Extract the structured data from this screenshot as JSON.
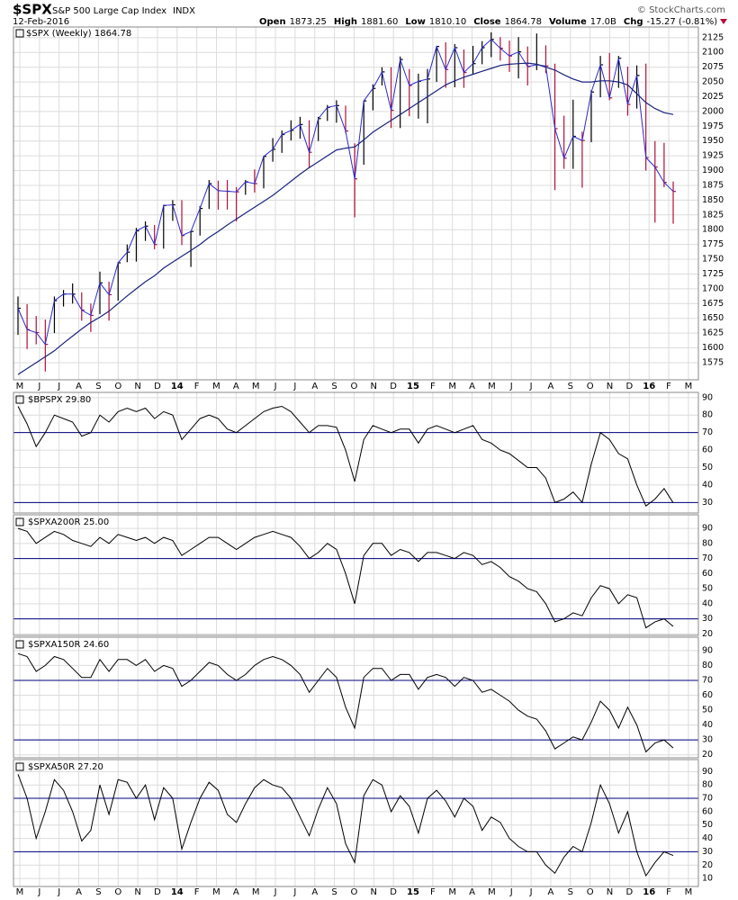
{
  "chart_data": [
    {
      "type": "ohlc",
      "title": "$SPX",
      "subtitle": "S&P 500 Large Cap Index",
      "exchange": "INDX",
      "date": "12-Feb-2016",
      "source": "© StockCharts.com",
      "stats": [
        {
          "label": "Open",
          "value": "1873.25"
        },
        {
          "label": "High",
          "value": "1881.60"
        },
        {
          "label": "Low",
          "value": "1810.10"
        },
        {
          "label": "Close",
          "value": "1864.78"
        },
        {
          "label": "Volume",
          "value": "17.0B"
        },
        {
          "label": "Chg",
          "value": "-15.27 (-0.81%)"
        }
      ],
      "legend": "$SPX (Weekly) 1864.78",
      "categories": [
        "M",
        "J",
        "J",
        "A",
        "S",
        "O",
        "N",
        "D",
        "14",
        "F",
        "M",
        "A",
        "M",
        "J",
        "J",
        "A",
        "S",
        "O",
        "N",
        "D",
        "15",
        "F",
        "M",
        "A",
        "M",
        "J",
        "J",
        "A",
        "S",
        "O",
        "N",
        "D",
        "16",
        "F",
        "M"
      ],
      "high": [
        1687,
        1674,
        1654,
        1648,
        1687,
        1698,
        1709,
        1694,
        1675,
        1729,
        1712,
        1745,
        1775,
        1803,
        1814,
        1808,
        1842,
        1850,
        1850,
        1798,
        1840,
        1884,
        1883,
        1884,
        1872,
        1884,
        1902,
        1925,
        1955,
        1968,
        1985,
        1991,
        1985,
        1991,
        2011,
        2019,
        2010,
        1946,
        2018,
        2046,
        2075,
        2075,
        2093,
        2072,
        2064,
        2072,
        2110,
        2117,
        2114,
        2105,
        2111,
        2119,
        2134,
        2126,
        2120,
        2126,
        2110,
        2132,
        2112,
        2081,
        1993,
        2020,
        1966,
        2036,
        2094,
        2099,
        2094,
        2076,
        2078,
        2081,
        1950,
        1947,
        1881.6
      ],
      "low": [
        1622,
        1598,
        1606,
        1560,
        1625,
        1670,
        1675,
        1646,
        1627,
        1657,
        1646,
        1680,
        1745,
        1746,
        1781,
        1767,
        1768,
        1815,
        1774,
        1737,
        1790,
        1835,
        1834,
        1834,
        1814,
        1859,
        1863,
        1870,
        1915,
        1930,
        1951,
        1954,
        1904,
        1950,
        1984,
        1981,
        1964,
        1821,
        1910,
        2002,
        2044,
        1972,
        1972,
        1992,
        1988,
        1980,
        2050,
        2040,
        2041,
        2040,
        2064,
        2080,
        2092,
        2086,
        2067,
        2056,
        2044,
        2070,
        2065,
        1867,
        1903,
        1903,
        1871,
        1948,
        2024,
        2019,
        2040,
        1993,
        2005,
        1900,
        1812,
        1872,
        1810.1
      ],
      "close": [
        1667,
        1631,
        1626,
        1606,
        1680,
        1691,
        1691,
        1664,
        1655,
        1710,
        1690,
        1744,
        1762,
        1798,
        1806,
        1775,
        1841,
        1842,
        1790,
        1797,
        1836,
        1878,
        1866,
        1865,
        1864,
        1881,
        1878,
        1924,
        1936,
        1961,
        1968,
        1978,
        1931,
        1988,
        2007,
        2010,
        1967,
        1886,
        2018,
        2039,
        2067,
        2002,
        2088,
        2044,
        2051,
        2055,
        2110,
        2071,
        2108,
        2066,
        2081,
        2108,
        2122,
        2107,
        2094,
        2101,
        2076,
        2079,
        2077,
        1971,
        1921,
        1958,
        1951,
        2033,
        2079,
        2023,
        2090,
        2012,
        2061,
        1922,
        1906,
        1880,
        1864.78
      ],
      "ma": [
        1555,
        1565,
        1575,
        1585,
        1595,
        1608,
        1620,
        1632,
        1643,
        1652,
        1662,
        1675,
        1688,
        1700,
        1712,
        1722,
        1735,
        1745,
        1755,
        1765,
        1775,
        1787,
        1797,
        1808,
        1818,
        1828,
        1838,
        1848,
        1858,
        1870,
        1882,
        1894,
        1905,
        1915,
        1925,
        1935,
        1938,
        1940,
        1952,
        1965,
        1975,
        1985,
        1995,
        2005,
        2015,
        2025,
        2035,
        2045,
        2052,
        2058,
        2063,
        2068,
        2073,
        2078,
        2080,
        2081,
        2082,
        2080,
        2075,
        2070,
        2062,
        2055,
        2050,
        2050,
        2052,
        2052,
        2050,
        2045,
        2030,
        2015,
        2005,
        1998,
        1995
      ],
      "up_color": "#000000",
      "down_color": "#b0103a",
      "close_color": "#2a2ad0",
      "ma_color": "#1a237e",
      "ylim": [
        1546,
        2143
      ],
      "yticks": [
        1575,
        1600,
        1625,
        1650,
        1675,
        1700,
        1725,
        1750,
        1775,
        1800,
        1825,
        1850,
        1875,
        1900,
        1925,
        1950,
        1975,
        2000,
        2025,
        2050,
        2075,
        2100,
        2125
      ],
      "grid": true
    },
    {
      "type": "line",
      "label": "$BPSPX 29.80",
      "color": "#000000",
      "hline_color": "#000080",
      "hlines": [
        30,
        70
      ],
      "values": [
        85,
        75,
        62,
        70,
        80,
        78,
        76,
        68,
        70,
        80,
        76,
        82,
        84,
        82,
        84,
        78,
        82,
        80,
        66,
        72,
        78,
        80,
        78,
        72,
        70,
        74,
        78,
        82,
        84,
        85,
        82,
        76,
        70,
        74,
        74,
        73,
        60,
        42,
        66,
        74,
        72,
        70,
        72,
        72,
        64,
        72,
        74,
        72,
        70,
        72,
        74,
        66,
        64,
        60,
        58,
        54,
        50,
        50,
        44,
        30,
        32,
        36,
        30,
        52,
        70,
        66,
        58,
        55,
        40,
        28,
        32,
        38,
        29.8
      ],
      "ylim": [
        24,
        93
      ],
      "yticks": [
        30,
        40,
        50,
        60,
        70,
        80,
        90
      ],
      "grid": true
    },
    {
      "type": "line",
      "label": "$SPXA200R 25.00",
      "color": "#000000",
      "hline_color": "#000080",
      "hlines": [
        30,
        70
      ],
      "values": [
        90,
        88,
        80,
        84,
        88,
        86,
        82,
        80,
        78,
        84,
        80,
        86,
        84,
        82,
        84,
        80,
        84,
        82,
        72,
        76,
        80,
        84,
        84,
        80,
        76,
        80,
        84,
        86,
        88,
        86,
        84,
        78,
        70,
        74,
        80,
        76,
        60,
        40,
        72,
        80,
        80,
        72,
        76,
        74,
        68,
        74,
        74,
        72,
        70,
        74,
        72,
        66,
        68,
        64,
        58,
        55,
        50,
        48,
        40,
        28,
        30,
        34,
        32,
        44,
        52,
        50,
        40,
        46,
        44,
        24,
        28,
        30,
        25
      ],
      "ylim": [
        19,
        99
      ],
      "yticks": [
        20,
        30,
        40,
        50,
        60,
        70,
        80,
        90
      ],
      "grid": true
    },
    {
      "type": "line",
      "label": "$SPXA150R 24.60",
      "color": "#000000",
      "hline_color": "#000080",
      "hlines": [
        30,
        70
      ],
      "values": [
        88,
        86,
        76,
        80,
        86,
        84,
        78,
        72,
        72,
        84,
        76,
        84,
        84,
        80,
        84,
        76,
        80,
        78,
        66,
        70,
        76,
        82,
        80,
        74,
        70,
        74,
        80,
        84,
        86,
        84,
        80,
        74,
        62,
        70,
        78,
        72,
        52,
        38,
        72,
        78,
        78,
        70,
        74,
        74,
        64,
        72,
        74,
        72,
        66,
        72,
        70,
        62,
        64,
        60,
        56,
        50,
        46,
        44,
        36,
        24,
        28,
        32,
        30,
        42,
        56,
        50,
        38,
        52,
        40,
        22,
        28,
        30,
        24.6
      ],
      "ylim": [
        18,
        99
      ],
      "yticks": [
        20,
        30,
        40,
        50,
        60,
        70,
        80,
        90
      ],
      "grid": true
    },
    {
      "type": "line",
      "label": "$SPXA50R 27.20",
      "color": "#000000",
      "hline_color": "#000080",
      "hlines": [
        30,
        70
      ],
      "values": [
        88,
        70,
        40,
        60,
        84,
        76,
        60,
        38,
        46,
        80,
        58,
        84,
        82,
        70,
        80,
        54,
        78,
        70,
        32,
        52,
        70,
        82,
        76,
        58,
        52,
        66,
        78,
        84,
        80,
        78,
        70,
        56,
        42,
        62,
        78,
        66,
        36,
        22,
        72,
        84,
        80,
        60,
        72,
        64,
        44,
        70,
        76,
        68,
        56,
        70,
        64,
        46,
        56,
        52,
        40,
        34,
        30,
        30,
        20,
        14,
        26,
        34,
        30,
        52,
        80,
        66,
        44,
        60,
        30,
        12,
        22,
        30,
        27.2
      ],
      "ylim": [
        4,
        99
      ],
      "yticks": [
        10,
        20,
        30,
        40,
        50,
        60,
        70,
        80,
        90
      ],
      "grid": true
    }
  ]
}
